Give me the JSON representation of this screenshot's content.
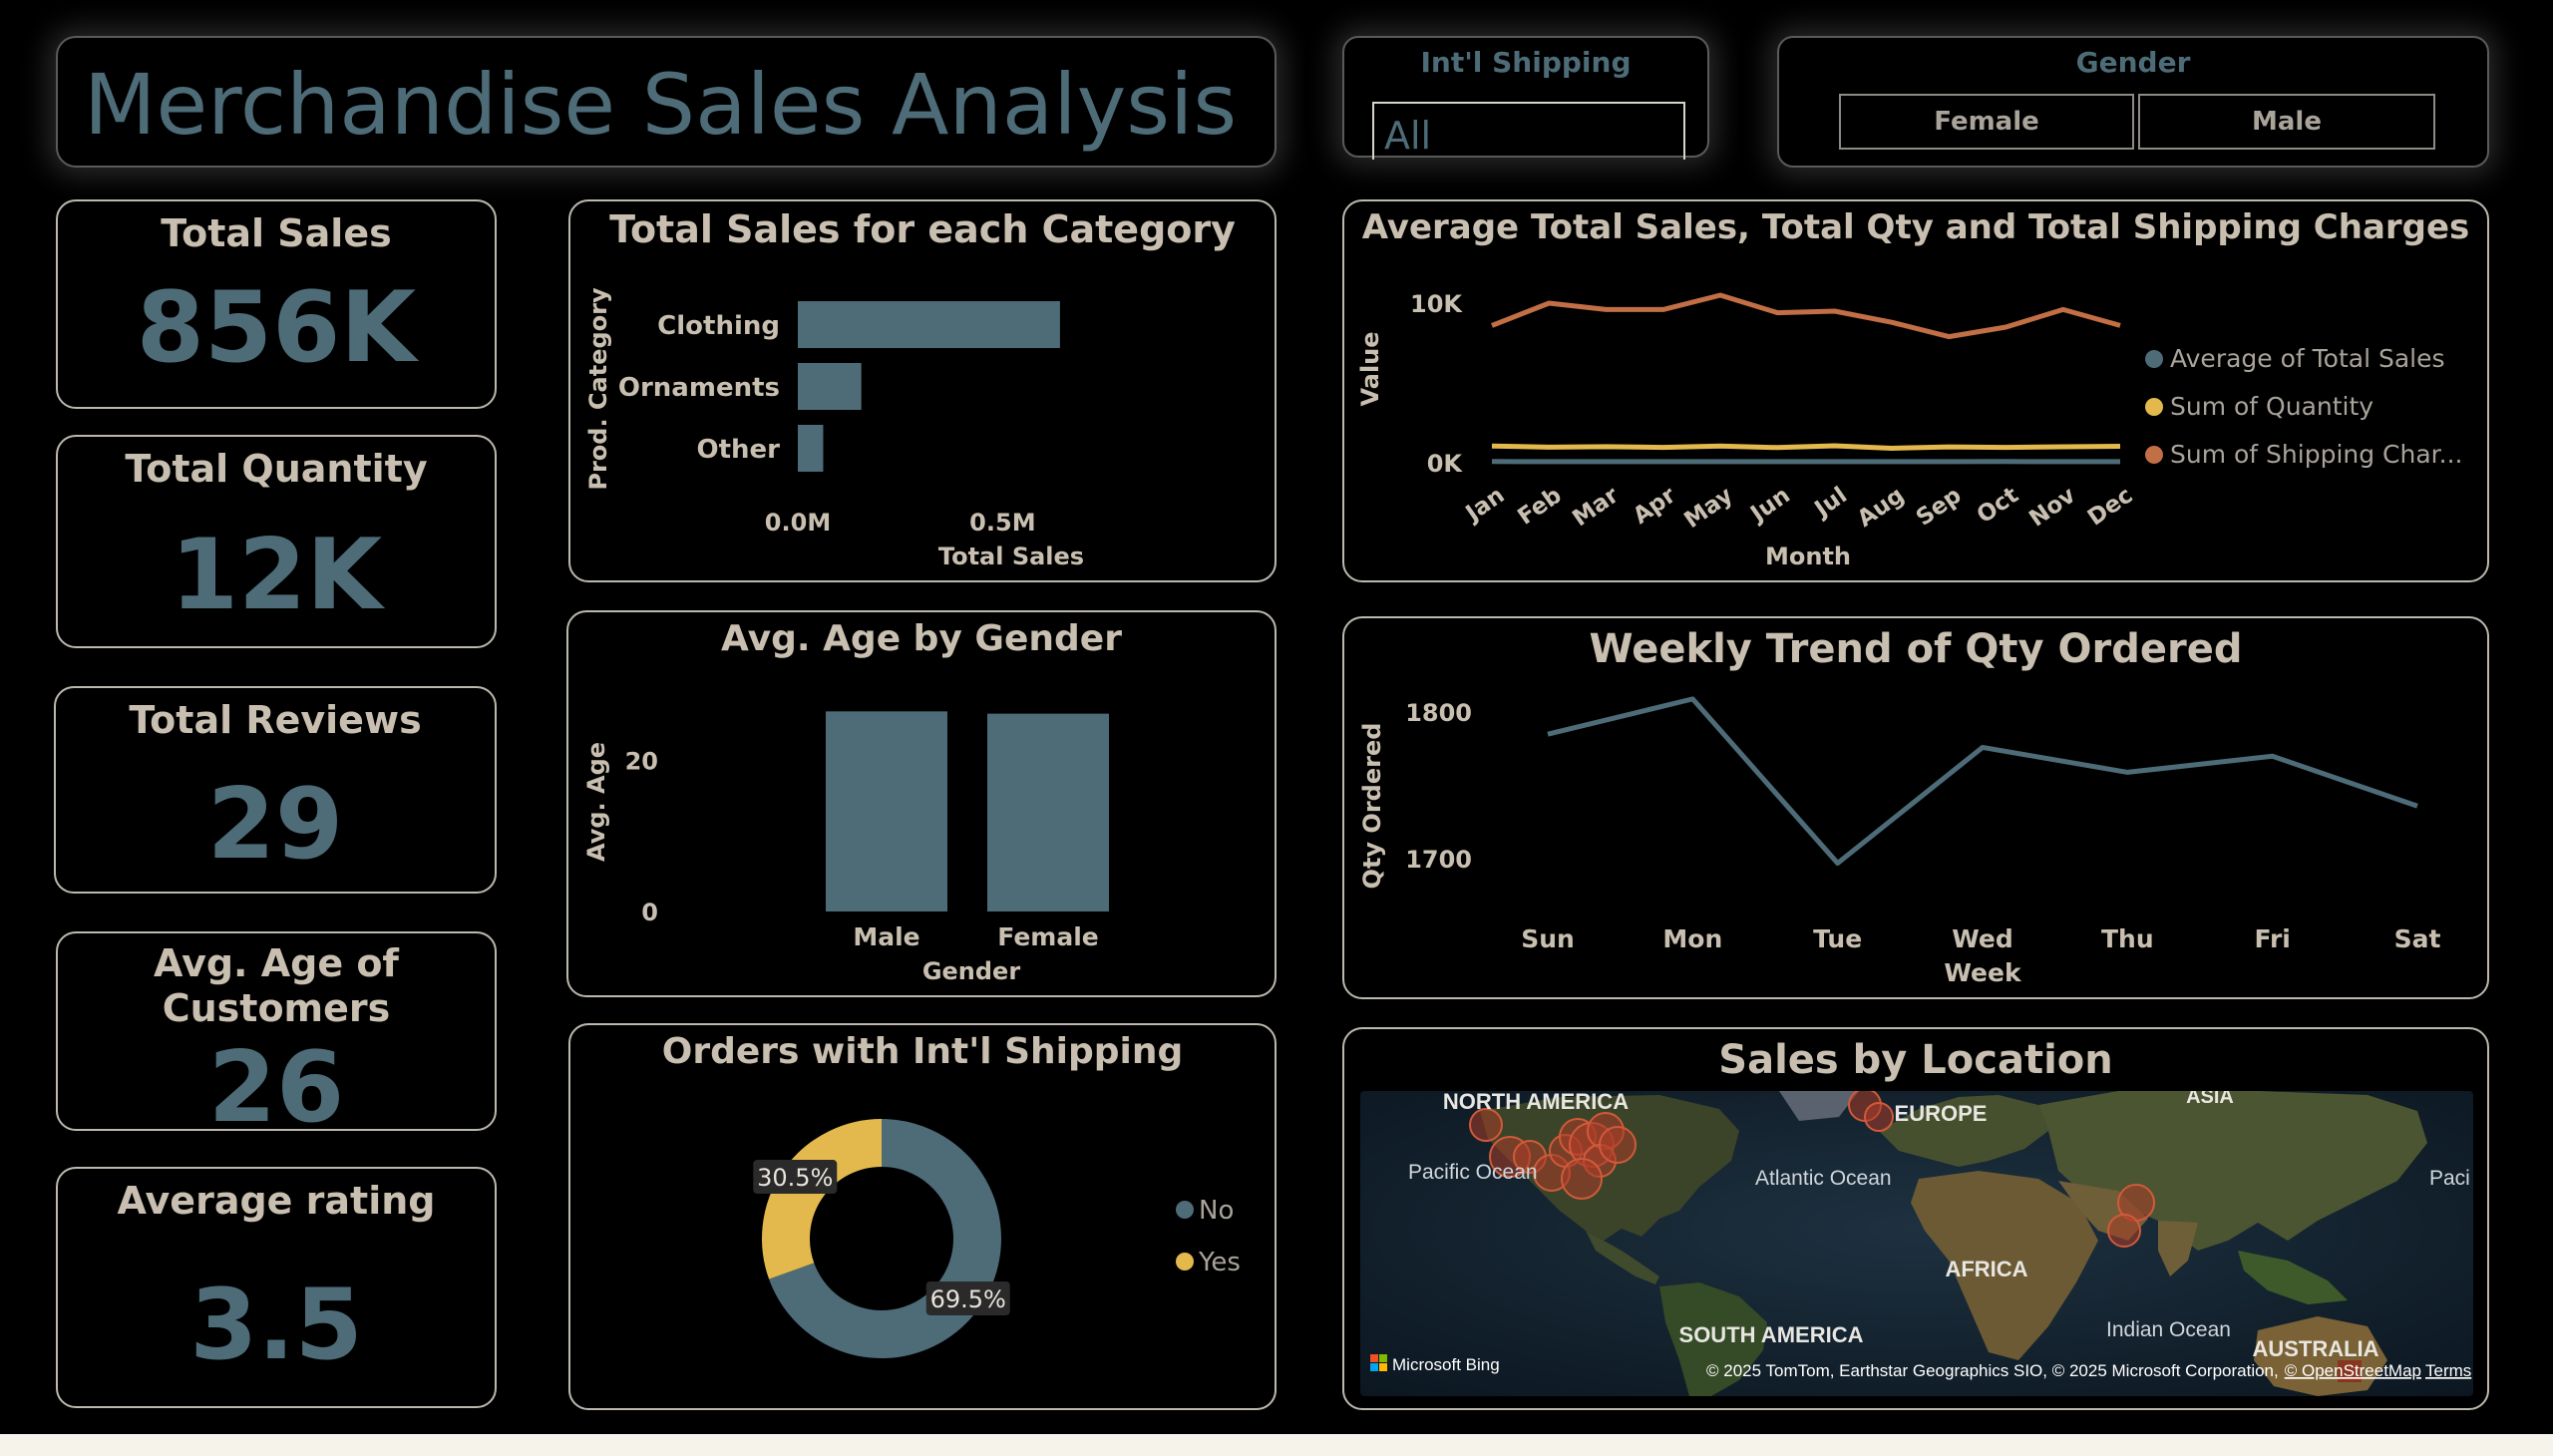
{
  "header": {
    "title": "Merchandise Sales Analysis"
  },
  "slicers": {
    "shipping": {
      "label": "Int'l Shipping",
      "value": "All"
    },
    "gender": {
      "label": "Gender",
      "options": [
        "Female",
        "Male"
      ]
    }
  },
  "kpis": [
    {
      "label": "Total Sales",
      "value": "856K"
    },
    {
      "label": "Total Quantity",
      "value": "12K"
    },
    {
      "label": "Total Reviews",
      "value": "29"
    },
    {
      "label": "Avg. Age of Customers",
      "value": "26"
    },
    {
      "label": "Average rating",
      "value": "3.5"
    }
  ],
  "colors": {
    "teal": "#4d6c78",
    "gold": "#e3b94d",
    "orange": "#c26f45",
    "text": "#c8bfb0"
  },
  "chart_data": [
    {
      "id": "category",
      "type": "bar",
      "orientation": "horizontal",
      "title": "Total Sales for each Category",
      "xlabel": "Total Sales",
      "ylabel": "Prod. Category",
      "categories": [
        "Clothing",
        "Ornaments",
        "Other"
      ],
      "values": [
        640000,
        155000,
        62000
      ],
      "xlim": [
        0,
        650000
      ],
      "xticks": [
        {
          "value": 0,
          "label": "0.0M"
        },
        {
          "value": 500000,
          "label": "0.5M"
        }
      ]
    },
    {
      "id": "monthly",
      "type": "line",
      "title": "Average Total Sales, Total Qty and Total Shipping Charges",
      "xlabel": "Month",
      "ylabel": "Value",
      "x": [
        "Jan",
        "Feb",
        "Mar",
        "Apr",
        "May",
        "Jun",
        "Jul",
        "Aug",
        "Sep",
        "Oct",
        "Nov",
        "Dec"
      ],
      "ylim": [
        0,
        12000
      ],
      "yticks": [
        {
          "value": 0,
          "label": "0K"
        },
        {
          "value": 10000,
          "label": "10K"
        }
      ],
      "series": [
        {
          "name": "Average of Total Sales",
          "color": "#4d6c78",
          "values": [
            75,
            73,
            72,
            74,
            71,
            72,
            74,
            73,
            72,
            75,
            72,
            74
          ]
        },
        {
          "name": "Sum of Quantity",
          "color": "#e3b94d",
          "values": [
            1050,
            980,
            1010,
            960,
            1050,
            950,
            1060,
            910,
            990,
            960,
            1000,
            1030
          ]
        },
        {
          "name": "Sum of Shipping Char...",
          "color": "#c26f45",
          "values": [
            8600,
            10000,
            9600,
            9600,
            10500,
            9400,
            9500,
            8800,
            7900,
            8500,
            9600,
            8600
          ]
        }
      ],
      "legend": "right"
    },
    {
      "id": "age",
      "type": "bar",
      "title": "Avg. Age by Gender",
      "xlabel": "Gender",
      "ylabel": "Avg. Age",
      "categories": [
        "Male",
        "Female"
      ],
      "values": [
        26.5,
        26.2
      ],
      "ylim": [
        0,
        28
      ],
      "yticks": [
        0,
        20
      ]
    },
    {
      "id": "weekly",
      "type": "line",
      "title": "Weekly Trend of Qty Ordered",
      "xlabel": "Week",
      "ylabel": "Qty Ordered",
      "x": [
        "Sun",
        "Mon",
        "Tue",
        "Wed",
        "Thu",
        "Fri",
        "Sat"
      ],
      "values": [
        1785,
        1809,
        1697,
        1776,
        1759,
        1770,
        1736
      ],
      "ylim": [
        1660,
        1830
      ],
      "yticks": [
        1700,
        1800
      ]
    },
    {
      "id": "shipping",
      "type": "pie",
      "title": "Orders with Int'l Shipping",
      "slices": [
        {
          "name": "No",
          "value": 69.5,
          "label": "69.5%",
          "color": "#4d6c78"
        },
        {
          "name": "Yes",
          "value": 30.5,
          "label": "30.5%",
          "color": "#e3b94d"
        }
      ],
      "legend": "right"
    }
  ],
  "map": {
    "title": "Sales by Location",
    "labels": {
      "north_america": "NORTH AMERICA",
      "europe": "EUROPE",
      "asia": "ASIA",
      "africa": "AFRICA",
      "south_america": "SOUTH AMERICA",
      "australia": "AUSTRALIA",
      "pacific": "Pacific Ocean",
      "atlantic": "Atlantic Ocean",
      "indian": "Indian Ocean",
      "pacific_right": "Paci Oce"
    },
    "bing": "Microsoft Bing",
    "attribution": "© 2025 TomTom, Earthstar Geographics SIO, © 2025 Microsoft Corporation,",
    "osm_link": "© OpenStreetMap",
    "terms_link": "Terms"
  }
}
